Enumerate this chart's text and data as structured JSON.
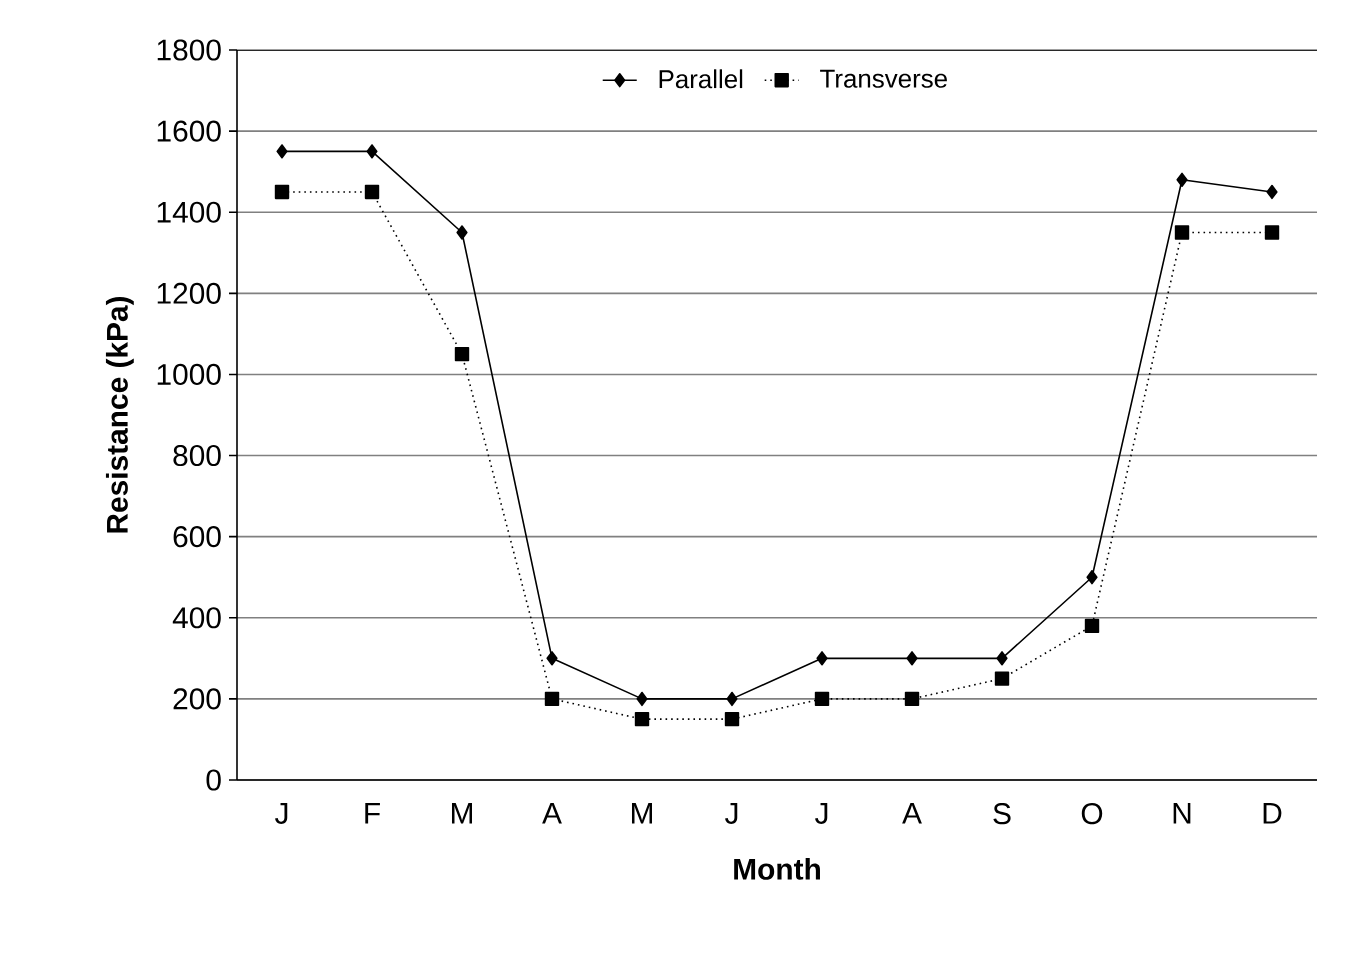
{
  "chart_data": {
    "type": "line",
    "xlabel": "Month",
    "ylabel": "Resistance (kPa)",
    "categories": [
      "J",
      "F",
      "M",
      "A",
      "M",
      "J",
      "J",
      "A",
      "S",
      "O",
      "N",
      "D"
    ],
    "series": [
      {
        "name": "Parallel",
        "color": "#000000",
        "marker": "diamond",
        "line_style": "solid",
        "values": [
          1550,
          1550,
          1350,
          300,
          200,
          200,
          300,
          300,
          300,
          500,
          1480,
          1450
        ]
      },
      {
        "name": "Transverse",
        "color": "#000000",
        "marker": "square",
        "line_style": "dotted",
        "values": [
          1450,
          1450,
          1050,
          200,
          150,
          150,
          200,
          200,
          250,
          380,
          1350,
          1350
        ]
      }
    ],
    "ylim": [
      0,
      1800
    ],
    "yticks": [
      0,
      200,
      400,
      600,
      800,
      1000,
      1200,
      1400,
      1600,
      1800
    ],
    "grid": "y",
    "legend": "top"
  }
}
